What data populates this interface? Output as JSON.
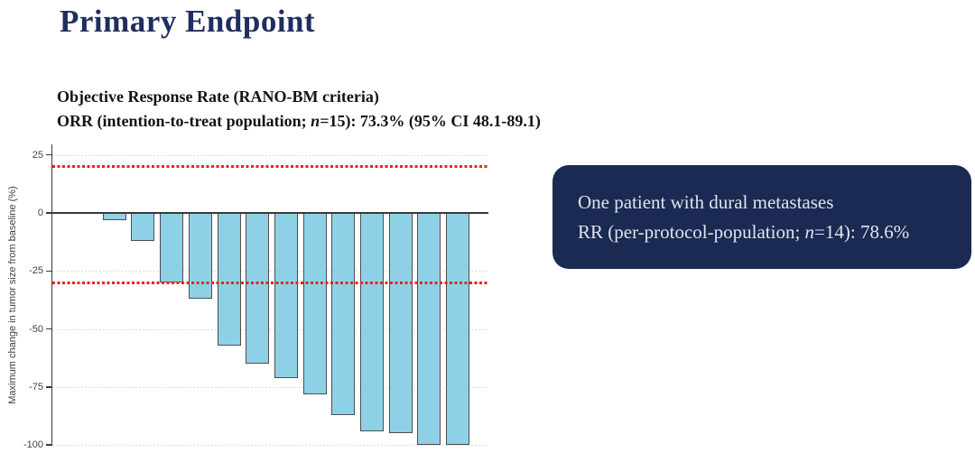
{
  "slide": {
    "title": "Primary Endpoint",
    "subtitle_line1": "Objective Response Rate (RANO-BM criteria)",
    "subtitle_line2": {
      "pre": "ORR (intention-to-treat population; ",
      "n": "n",
      "post": "=15): 73.3% (95% CI 48.1-89.1)"
    },
    "note_box": {
      "line1": "One patient with dural metastases",
      "line2": {
        "pre": "RR (per-protocol-population; ",
        "n": "n",
        "post": "=14): 78.6%"
      },
      "bg_color": "#1b2a52",
      "text_color": "#dde4f0"
    }
  },
  "chart_data": {
    "type": "bar",
    "title": "",
    "xlabel": "",
    "ylabel": "Maximum change in tumor size from baseline (%)",
    "yticks": [
      25,
      0,
      -25,
      -50,
      -75,
      -100
    ],
    "ylim": [
      -100,
      25
    ],
    "values": [
      -3,
      -12,
      -30,
      -37,
      -57,
      -65,
      -71,
      -78,
      -87,
      -94,
      -95,
      -100,
      -100
    ],
    "reference_lines": [
      {
        "value": 20,
        "color": "#e8231e",
        "style": "dotted"
      },
      {
        "value": -30,
        "color": "#e8231e",
        "style": "dotted"
      }
    ],
    "grid": "dotted-horizontal",
    "legend": "none",
    "bar_fill": "#8ed1e6",
    "bar_border": "#4d4d4d"
  }
}
